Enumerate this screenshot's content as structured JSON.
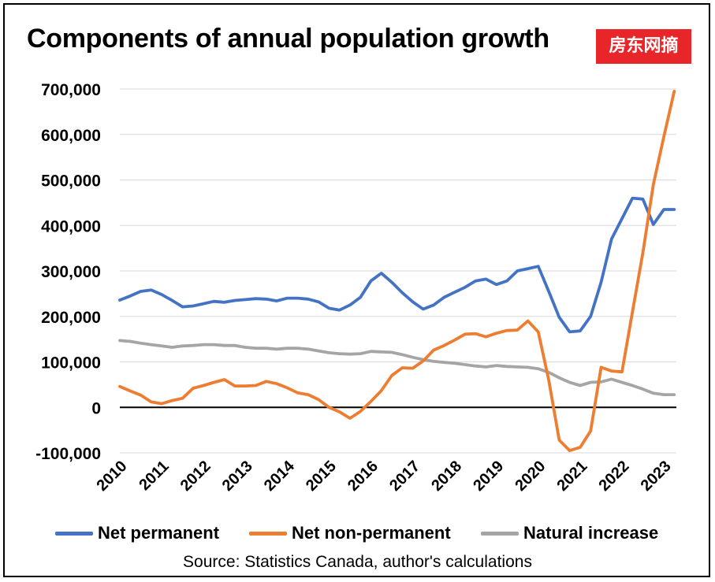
{
  "watermark": "房东网摘",
  "chart_data": {
    "type": "line",
    "title": "Components of annual population growth",
    "source": "Source: Statistics Canada, author's calculations",
    "xlabel": "",
    "ylabel": "",
    "ylim": [
      -100000,
      700000
    ],
    "xlim": [
      2010,
      2023.3
    ],
    "yticks": [
      -100000,
      0,
      100000,
      200000,
      300000,
      400000,
      500000,
      600000,
      700000
    ],
    "ytick_labels": [
      "-100,000",
      "0",
      "100,000",
      "200,000",
      "300,000",
      "400,000",
      "500,000",
      "600,000",
      "700,000"
    ],
    "xticks": [
      2010,
      2011,
      2012,
      2013,
      2014,
      2015,
      2016,
      2017,
      2018,
      2019,
      2020,
      2021,
      2022,
      2023
    ],
    "xtick_labels": [
      "2010",
      "2011",
      "2012",
      "2013",
      "2014",
      "2015",
      "2016",
      "2017",
      "2018",
      "2019",
      "2020",
      "2021",
      "2022",
      "2023"
    ],
    "grid": "horizontal",
    "legend_position": "bottom",
    "series": [
      {
        "name": "Net permanent",
        "color": "#4472c4",
        "x": [
          2010.0,
          2010.25,
          2010.5,
          2010.75,
          2011.0,
          2011.25,
          2011.5,
          2011.75,
          2012.0,
          2012.25,
          2012.5,
          2012.75,
          2013.0,
          2013.25,
          2013.5,
          2013.75,
          2014.0,
          2014.25,
          2014.5,
          2014.75,
          2015.0,
          2015.25,
          2015.5,
          2015.75,
          2016.0,
          2016.25,
          2016.5,
          2016.75,
          2017.0,
          2017.25,
          2017.5,
          2017.75,
          2018.0,
          2018.25,
          2018.5,
          2018.75,
          2019.0,
          2019.25,
          2019.5,
          2019.75,
          2020.0,
          2020.25,
          2020.5,
          2020.75,
          2021.0,
          2021.25,
          2021.5,
          2021.75,
          2022.0,
          2022.25,
          2022.5,
          2022.75,
          2023.0,
          2023.25
        ],
        "values": [
          236000,
          245000,
          255000,
          258000,
          248000,
          235000,
          221000,
          223000,
          228000,
          233000,
          231000,
          235000,
          237000,
          239000,
          238000,
          234000,
          240000,
          240000,
          238000,
          232000,
          218000,
          214000,
          225000,
          242000,
          278000,
          295000,
          275000,
          252000,
          232000,
          216000,
          225000,
          242000,
          253000,
          264000,
          278000,
          282000,
          270000,
          278000,
          300000,
          305000,
          310000,
          255000,
          198000,
          166000,
          168000,
          200000,
          275000,
          370000,
          415000,
          460000,
          458000,
          402000,
          435000,
          435000
        ]
      },
      {
        "name": "Net non-permanent",
        "color": "#ed7d31",
        "x": [
          2010.0,
          2010.25,
          2010.5,
          2010.75,
          2011.0,
          2011.25,
          2011.5,
          2011.75,
          2012.0,
          2012.25,
          2012.5,
          2012.75,
          2013.0,
          2013.25,
          2013.5,
          2013.75,
          2014.0,
          2014.25,
          2014.5,
          2014.75,
          2015.0,
          2015.25,
          2015.5,
          2015.75,
          2016.0,
          2016.25,
          2016.5,
          2016.75,
          2017.0,
          2017.25,
          2017.5,
          2017.75,
          2018.0,
          2018.25,
          2018.5,
          2018.75,
          2019.0,
          2019.25,
          2019.5,
          2019.75,
          2020.0,
          2020.25,
          2020.5,
          2020.75,
          2021.0,
          2021.25,
          2021.5,
          2021.75,
          2022.0,
          2022.25,
          2022.5,
          2022.75,
          2023.0,
          2023.25
        ],
        "values": [
          46000,
          36000,
          27000,
          12000,
          8000,
          15000,
          20000,
          42000,
          48000,
          55000,
          61000,
          47000,
          47000,
          48000,
          57000,
          52000,
          43000,
          32000,
          28000,
          17000,
          0,
          -10000,
          -24000,
          -9000,
          13000,
          37000,
          70000,
          87000,
          86000,
          102000,
          126000,
          136000,
          148000,
          161000,
          162000,
          155000,
          163000,
          169000,
          170000,
          190000,
          166000,
          60000,
          -72000,
          -95000,
          -88000,
          -52000,
          88000,
          80000,
          78000,
          210000,
          340000,
          490000,
          595000,
          695000
        ]
      },
      {
        "name": "Natural increase",
        "color": "#a5a5a5",
        "x": [
          2010.0,
          2010.25,
          2010.5,
          2010.75,
          2011.0,
          2011.25,
          2011.5,
          2011.75,
          2012.0,
          2012.25,
          2012.5,
          2012.75,
          2013.0,
          2013.25,
          2013.5,
          2013.75,
          2014.0,
          2014.25,
          2014.5,
          2014.75,
          2015.0,
          2015.25,
          2015.5,
          2015.75,
          2016.0,
          2016.25,
          2016.5,
          2016.75,
          2017.0,
          2017.25,
          2017.5,
          2017.75,
          2018.0,
          2018.25,
          2018.5,
          2018.75,
          2019.0,
          2019.25,
          2019.5,
          2019.75,
          2020.0,
          2020.25,
          2020.5,
          2020.75,
          2021.0,
          2021.25,
          2021.5,
          2021.75,
          2022.0,
          2022.25,
          2022.5,
          2022.75,
          2023.0,
          2023.25
        ],
        "values": [
          147000,
          145000,
          141000,
          138000,
          135000,
          132000,
          135000,
          136000,
          138000,
          138000,
          136000,
          136000,
          132000,
          130000,
          130000,
          128000,
          130000,
          130000,
          128000,
          124000,
          120000,
          118000,
          117000,
          118000,
          123000,
          122000,
          121000,
          116000,
          110000,
          105000,
          101000,
          99000,
          97000,
          94000,
          91000,
          89000,
          92000,
          90000,
          89000,
          88000,
          85000,
          77000,
          65000,
          55000,
          48000,
          55000,
          56000,
          62000,
          55000,
          48000,
          40000,
          31000,
          28000,
          28000
        ]
      }
    ]
  }
}
